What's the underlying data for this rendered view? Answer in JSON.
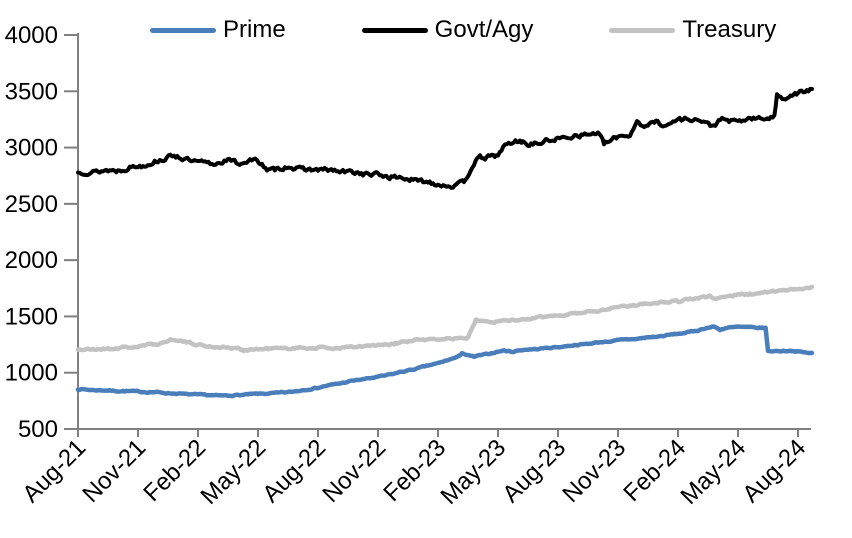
{
  "chart_data": {
    "type": "line",
    "title": "",
    "xlabel": "",
    "ylabel": "",
    "x_unit": "months since Aug-21",
    "x_axis": {
      "tick_labels": [
        "Aug-21",
        "Nov-21",
        "Feb-22",
        "May-22",
        "Aug-22",
        "Nov-22",
        "Feb-23",
        "May-23",
        "Aug-23",
        "Nov-23",
        "Feb-24",
        "May-24",
        "Aug-24"
      ],
      "tick_interval_months": 3,
      "label_rotation_deg": 45
    },
    "y_axis": {
      "min": 500,
      "max": 4000,
      "tick_step": 500,
      "tick_labels": [
        "500",
        "1000",
        "1500",
        "2000",
        "2500",
        "3000",
        "3500",
        "4000"
      ]
    },
    "grid": "off",
    "legend_position": "top",
    "series": [
      {
        "name": "Prime",
        "color": "#4A7EBB",
        "x": [
          0,
          1,
          2,
          3,
          4,
          5,
          6,
          7,
          7.5,
          8,
          9,
          10,
          10.5,
          11,
          11.5,
          12,
          13,
          14,
          15,
          16,
          17,
          18,
          18.5,
          19,
          19.2,
          19.45,
          19.8,
          20,
          20.5,
          21,
          21.3,
          21.8,
          22,
          23,
          24,
          25,
          26,
          27,
          28,
          29,
          30,
          30.5,
          31,
          31.4,
          31.8,
          32.1,
          32.5,
          33,
          33.5,
          34,
          34.38,
          34.5,
          35,
          35.6,
          36,
          36.7
        ],
        "y": [
          853,
          845,
          838,
          833,
          825,
          813,
          805,
          798,
          796,
          802,
          812,
          820,
          828,
          838,
          852,
          868,
          903,
          936,
          962,
          1000,
          1040,
          1085,
          1112,
          1140,
          1178,
          1155,
          1140,
          1150,
          1168,
          1186,
          1196,
          1188,
          1198,
          1212,
          1228,
          1248,
          1268,
          1288,
          1303,
          1322,
          1345,
          1360,
          1375,
          1398,
          1410,
          1382,
          1400,
          1408,
          1402,
          1400,
          1398,
          1190,
          1193,
          1196,
          1186,
          1175
        ]
      },
      {
        "name": "Govt/Agy",
        "color": "#000000",
        "x": [
          0,
          1,
          2,
          3,
          4,
          4.8,
          5.3,
          6,
          6.7,
          7.4,
          8,
          8.6,
          9.2,
          9.45,
          10,
          10.6,
          11,
          12,
          13,
          14,
          15,
          16,
          17,
          18,
          18.6,
          18.9,
          19.3,
          19.8,
          20.1,
          20.6,
          21,
          21.35,
          21.8,
          22.1,
          22.4,
          23,
          23.4,
          24,
          25,
          26,
          26.3,
          26.7,
          27,
          27.6,
          27.95,
          28.4,
          28.9,
          29.5,
          30,
          30.6,
          31.1,
          31.7,
          32.2,
          33,
          33.6,
          34.3,
          34.82,
          34.95,
          35.3,
          35.7,
          36,
          36.7
        ],
        "y": [
          2775,
          2790,
          2800,
          2835,
          2880,
          2935,
          2895,
          2870,
          2850,
          2890,
          2860,
          2888,
          2865,
          2795,
          2805,
          2840,
          2805,
          2805,
          2790,
          2775,
          2755,
          2735,
          2705,
          2680,
          2658,
          2655,
          2700,
          2860,
          2905,
          2920,
          2930,
          3020,
          3050,
          3065,
          3025,
          3040,
          3055,
          3080,
          3110,
          3130,
          3030,
          3070,
          3100,
          3110,
          3240,
          3180,
          3235,
          3195,
          3250,
          3260,
          3235,
          3195,
          3245,
          3230,
          3255,
          3260,
          3270,
          3460,
          3445,
          3470,
          3480,
          3520
        ]
      },
      {
        "name": "Treasury",
        "color": "#C2C2C2",
        "x": [
          0,
          1,
          2,
          3,
          4,
          4.8,
          5.5,
          6,
          6.5,
          7,
          8,
          8.3,
          9,
          10,
          11,
          12,
          13,
          14,
          15,
          15.8,
          16.2,
          17,
          18,
          19,
          19.5,
          19.9,
          20.4,
          20.9,
          21.4,
          22,
          23,
          24,
          25,
          26,
          27,
          28,
          29,
          30,
          30.6,
          31.2,
          31.6,
          31.9,
          32.3,
          33,
          33.6,
          34,
          35,
          36,
          36.7
        ],
        "y": [
          1205,
          1208,
          1218,
          1232,
          1258,
          1298,
          1268,
          1248,
          1235,
          1228,
          1215,
          1200,
          1210,
          1215,
          1220,
          1222,
          1218,
          1230,
          1242,
          1252,
          1272,
          1290,
          1298,
          1306,
          1310,
          1480,
          1462,
          1450,
          1468,
          1465,
          1488,
          1510,
          1532,
          1552,
          1585,
          1605,
          1625,
          1635,
          1655,
          1668,
          1678,
          1652,
          1678,
          1690,
          1700,
          1705,
          1725,
          1748,
          1762
        ]
      }
    ]
  },
  "style": {
    "axis_color": "#7F7F7F",
    "label_color": "#000000",
    "background": "#FFFFFF"
  }
}
